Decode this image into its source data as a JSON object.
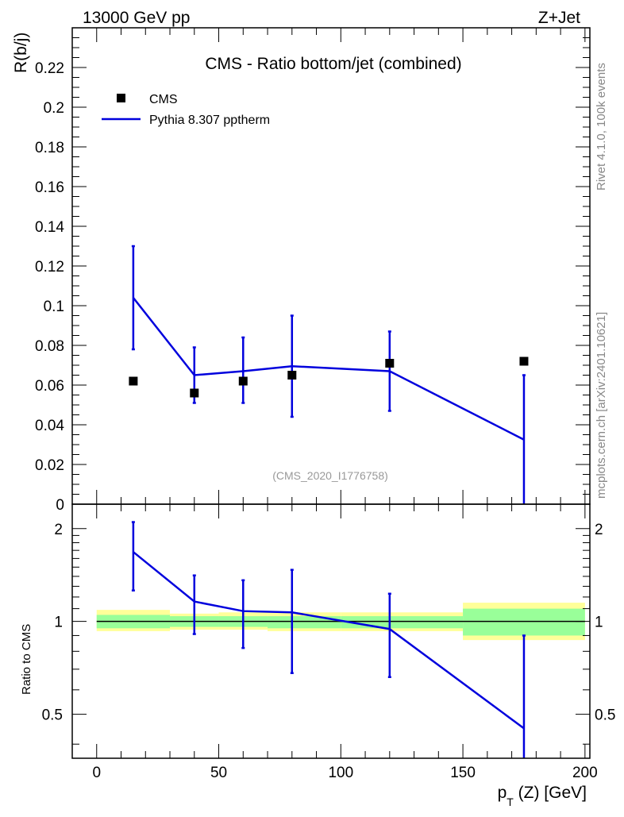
{
  "header": {
    "energy_label": "13000 GeV pp",
    "process_label": "Z+Jet"
  },
  "side_labels": {
    "rivet": "Rivet 4.1.0,  100k events",
    "source": "mcplots.cern.ch [arXiv:2401.10621]"
  },
  "chart_data": [
    {
      "type": "scatter",
      "title": "CMS - Ratio bottom/jet (combined)",
      "analysis_tag": "(CMS_2020_I1776758)",
      "xlabel": "",
      "ylabel": "R(b/j)",
      "xlim": [
        -10,
        202
      ],
      "ylim": [
        0,
        0.24
      ],
      "yticks": [
        0,
        0.02,
        0.04,
        0.06,
        0.08,
        0.1,
        0.12,
        0.14,
        0.16,
        0.18,
        0.2,
        0.22
      ],
      "ytick_labels": [
        "0",
        "0.02",
        "0.04",
        "0.06",
        "0.08",
        "0.1",
        "0.12",
        "0.14",
        "0.16",
        "0.18",
        "0.2",
        "0.22"
      ],
      "legend": [
        {
          "name": "CMS",
          "kind": "marker",
          "color": "#000000"
        },
        {
          "name": "Pythia 8.307 pptherm",
          "kind": "line",
          "color": "#0000dd"
        }
      ],
      "series": [
        {
          "name": "CMS",
          "x": [
            15,
            40,
            60,
            80,
            120,
            175
          ],
          "values": [
            0.062,
            0.056,
            0.062,
            0.065,
            0.071,
            0.072
          ]
        },
        {
          "name": "Pythia 8.307 pptherm",
          "x": [
            15,
            40,
            60,
            80,
            120,
            175
          ],
          "values": [
            0.104,
            0.065,
            0.067,
            0.0695,
            0.067,
            0.0325
          ],
          "err_low": [
            0.078,
            0.051,
            0.051,
            0.044,
            0.047,
            0.0
          ],
          "err_high": [
            0.13,
            0.079,
            0.084,
            0.095,
            0.087,
            0.065
          ]
        }
      ]
    },
    {
      "type": "line",
      "ylabel": "Ratio to CMS",
      "xlabel": "p_T (Z) [GeV]",
      "xlabel_main": "p",
      "xlabel_sub": "T",
      "xlabel_rest": " (Z) [GeV]",
      "xlim": [
        -10,
        202
      ],
      "ylim": [
        0.36,
        2.4
      ],
      "yscale": "log",
      "yticks": [
        0.5,
        1,
        2
      ],
      "ytick_labels": [
        "0.5",
        "1",
        "2"
      ],
      "xticks": [
        0,
        50,
        100,
        150,
        200
      ],
      "xtick_labels": [
        "0",
        "50",
        "100",
        "150",
        "200"
      ],
      "bands": {
        "edges": [
          0,
          30,
          50,
          70,
          100,
          150,
          200
        ],
        "inner_low": [
          0.95,
          0.96,
          0.96,
          0.95,
          0.95,
          0.9
        ],
        "inner_high": [
          1.05,
          1.04,
          1.04,
          1.04,
          1.04,
          1.1
        ],
        "outer_low": [
          0.93,
          0.94,
          0.94,
          0.93,
          0.93,
          0.87
        ],
        "outer_high": [
          1.09,
          1.06,
          1.07,
          1.07,
          1.07,
          1.15
        ],
        "inner_color": "#99ff99",
        "outer_color": "#ffff99"
      },
      "series": [
        {
          "name": "Pythia 8.307 pptherm / CMS",
          "x": [
            15,
            40,
            60,
            80,
            120,
            175
          ],
          "values": [
            1.68,
            1.16,
            1.08,
            1.07,
            0.945,
            0.45
          ],
          "err_low": [
            1.26,
            0.91,
            0.82,
            0.68,
            0.66,
            0.3
          ],
          "err_high": [
            2.1,
            1.41,
            1.36,
            1.47,
            1.23,
            0.9
          ]
        }
      ]
    }
  ]
}
